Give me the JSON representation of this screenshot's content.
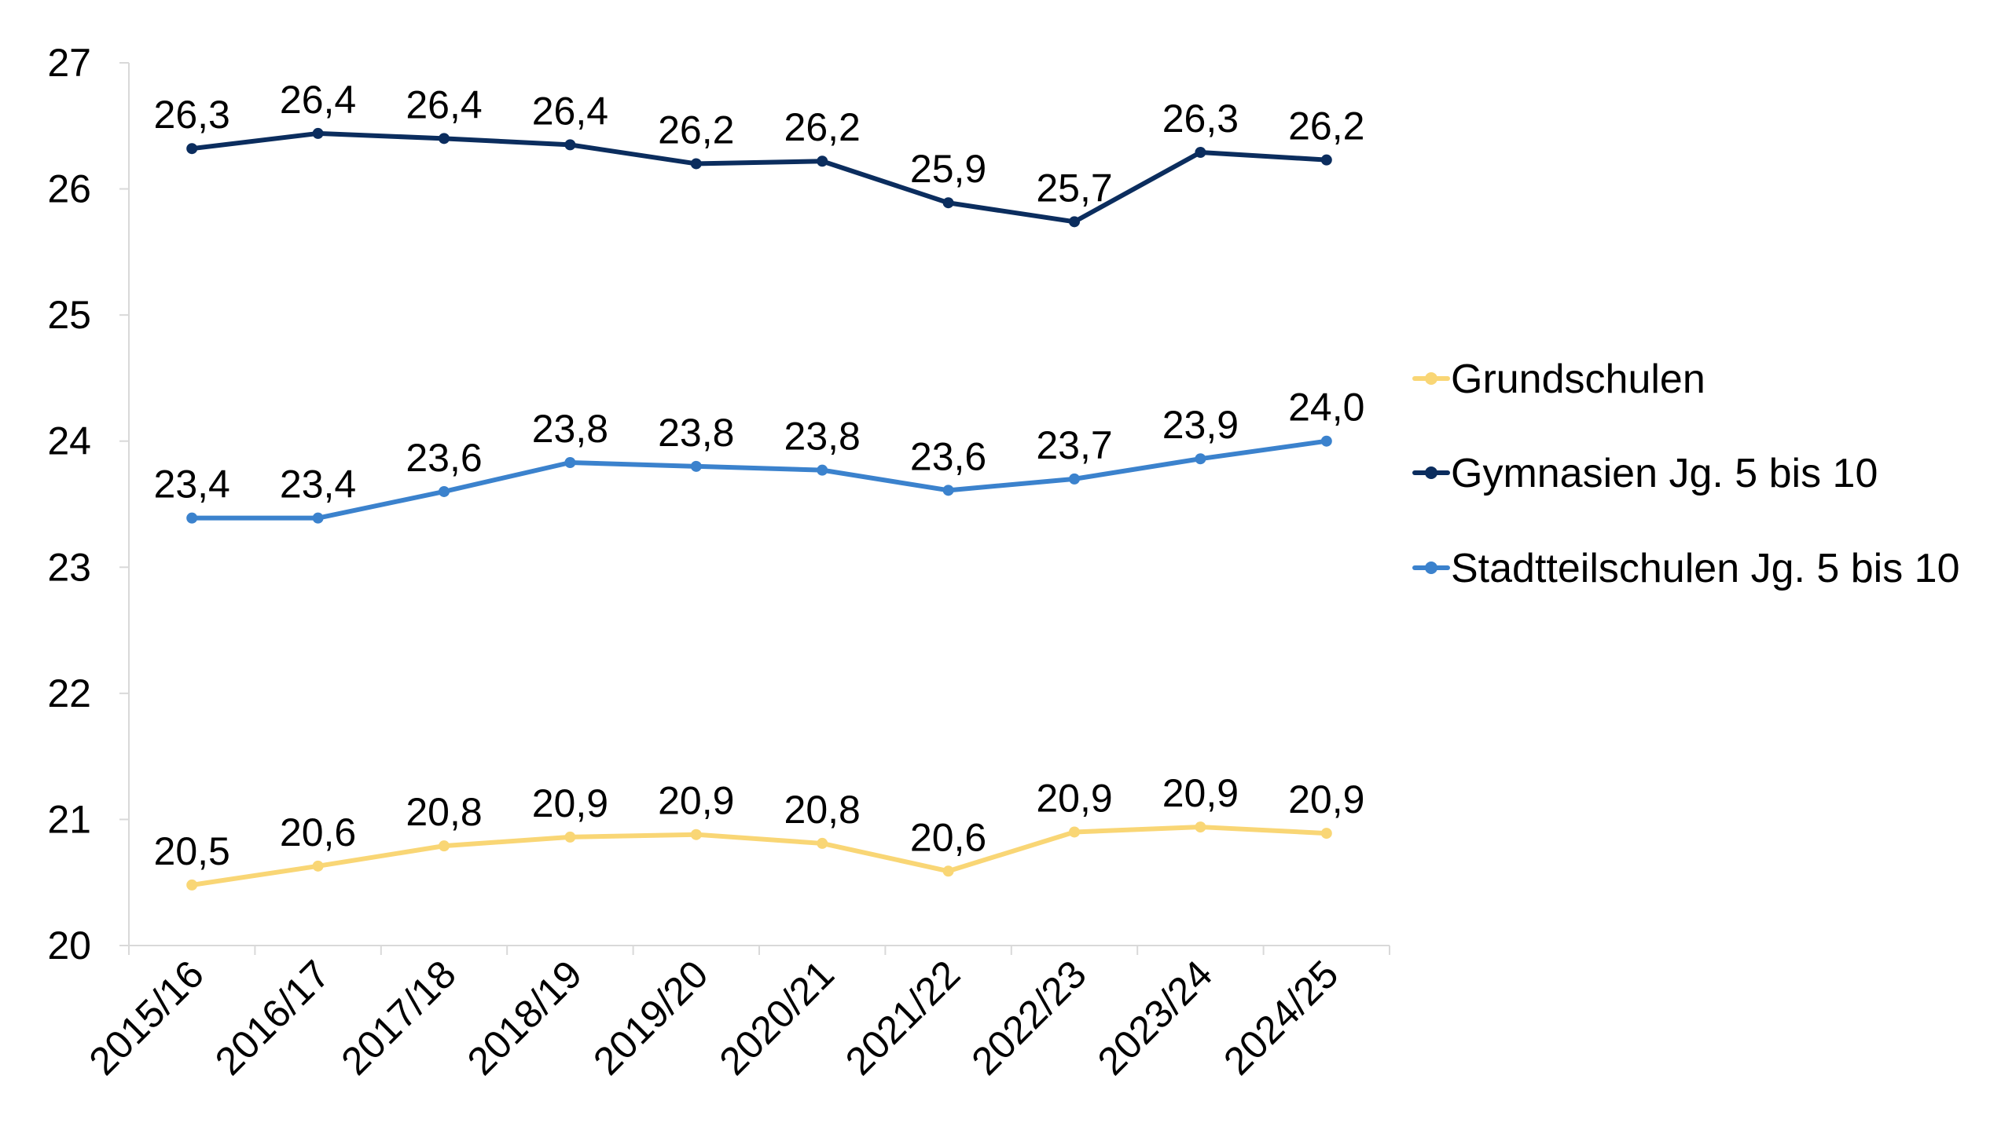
{
  "chart_data": {
    "type": "line",
    "categories": [
      "2015/16",
      "2016/17",
      "2017/18",
      "2018/19",
      "2019/20",
      "2020/21",
      "2021/22",
      "2022/23",
      "2023/24",
      "2024/25"
    ],
    "ylim": [
      20,
      27
    ],
    "yticks": [
      "20",
      "21",
      "22",
      "23",
      "24",
      "25",
      "26",
      "27"
    ],
    "grid": false,
    "legend_position": "right",
    "series": [
      {
        "name": "Grundschulen",
        "color": "#F9D675",
        "values": [
          20.48,
          20.63,
          20.79,
          20.86,
          20.88,
          20.81,
          20.59,
          20.9,
          20.94,
          20.89
        ],
        "labels": [
          "20,5",
          "20,6",
          "20,8",
          "20,9",
          "20,9",
          "20,8",
          "20,6",
          "20,9",
          "20,9",
          "20,9"
        ]
      },
      {
        "name": "Gymnasien Jg. 5 bis 10",
        "color": "#0B2D5E",
        "values": [
          26.32,
          26.44,
          26.4,
          26.35,
          26.2,
          26.22,
          25.89,
          25.74,
          26.29,
          26.23
        ],
        "labels": [
          "26,3",
          "26,4",
          "26,4",
          "26,4",
          "26,2",
          "26,2",
          "25,9",
          "25,7",
          "26,3",
          "26,2"
        ]
      },
      {
        "name": "Stadtteilschulen Jg. 5 bis 10",
        "color": "#3B82CD",
        "values": [
          23.39,
          23.39,
          23.6,
          23.83,
          23.8,
          23.77,
          23.61,
          23.7,
          23.86,
          24.0
        ],
        "labels": [
          "23,4",
          "23,4",
          "23,6",
          "23,8",
          "23,8",
          "23,8",
          "23,6",
          "23,7",
          "23,9",
          "24,0"
        ]
      }
    ]
  }
}
